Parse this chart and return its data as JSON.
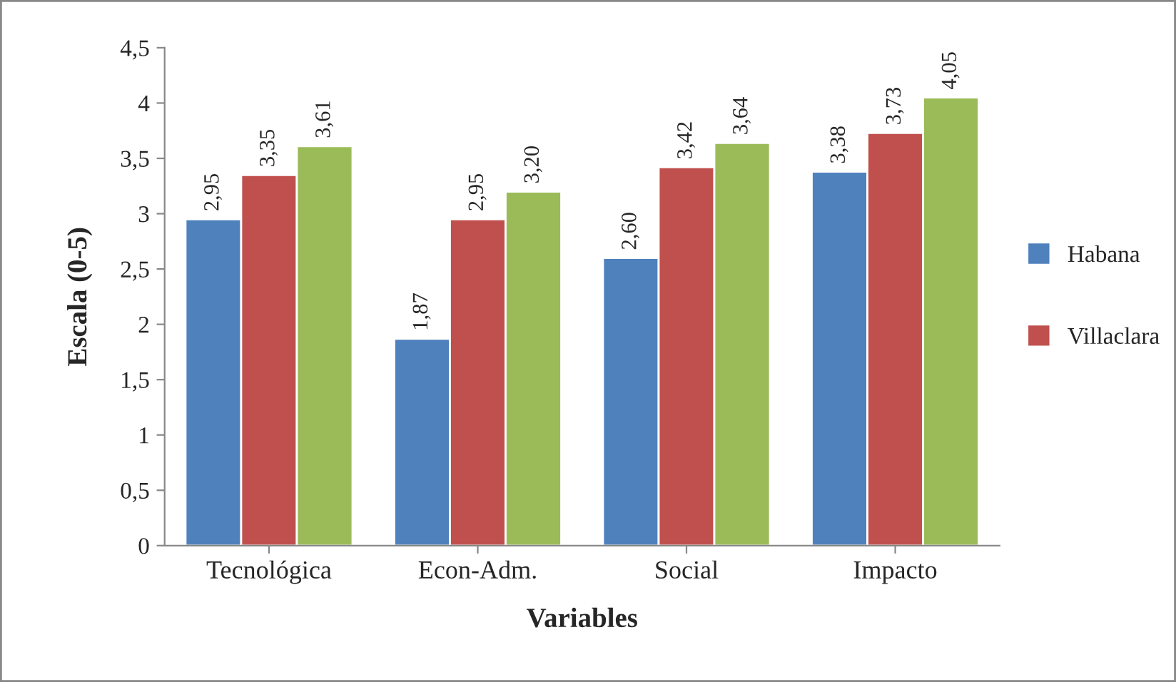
{
  "chart_data": {
    "type": "bar",
    "xlabel": "Variables",
    "ylabel": "Escala (0-5)",
    "categories": [
      "Tecnológica",
      "Econ-Adm.",
      "Social",
      "Impacto"
    ],
    "series": [
      {
        "name": "Habana",
        "color": "#4f81bd",
        "values": [
          2.95,
          1.87,
          2.6,
          3.38
        ],
        "value_labels": [
          "2,95",
          "1,87",
          "2,60",
          "3,38"
        ]
      },
      {
        "name": "Villaclara",
        "color": "#c0504d",
        "values": [
          3.35,
          2.95,
          3.42,
          3.73
        ],
        "value_labels": [
          "3,35",
          "2,95",
          "3,42",
          "3,73"
        ]
      },
      {
        "color": "#9bbb59",
        "values": [
          3.61,
          3.2,
          3.64,
          4.05
        ],
        "value_labels": [
          "3,61",
          "3,20",
          "3,64",
          "4,05"
        ]
      }
    ],
    "ylim": [
      0,
      4.5
    ],
    "yticks": [
      0,
      {
        "value": 0.5,
        "label": "0,5"
      },
      1,
      {
        "value": 1.5,
        "label": "1,5"
      },
      2,
      {
        "value": 2.5,
        "label": "2,5"
      },
      3,
      {
        "value": 3.5,
        "label": "3,5"
      },
      4,
      {
        "value": 4.5,
        "label": "4,5"
      }
    ],
    "grid": false,
    "legend": "right"
  }
}
